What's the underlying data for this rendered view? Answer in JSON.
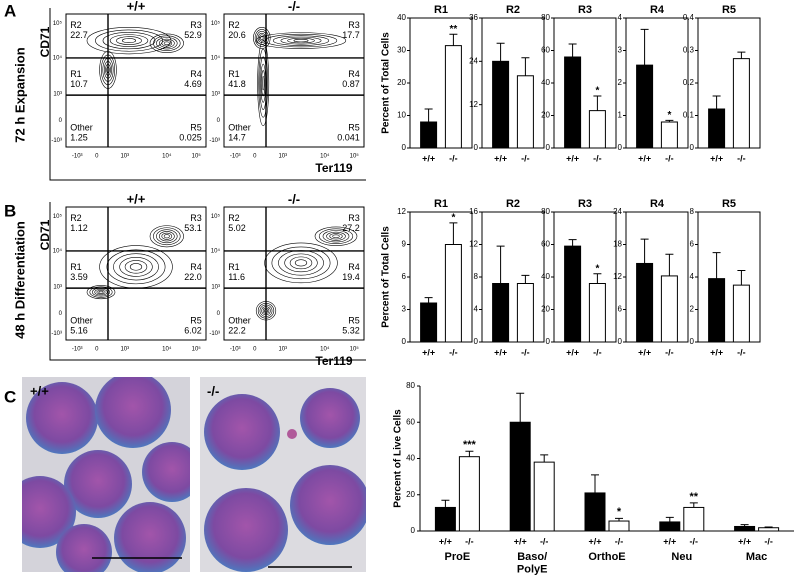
{
  "panel_labels": [
    "A",
    "B",
    "C"
  ],
  "row_labels": [
    "72 h Expansion",
    "48 h Differentiation"
  ],
  "micrograph_labels": [
    "+/+",
    "-/-"
  ],
  "chart_data": [
    {
      "type": "flow",
      "title": "+/+",
      "ylabel": "CD71",
      "quadrants": [
        {
          "name": "R2",
          "value": 22.7
        },
        {
          "name": "R3",
          "value": 52.9
        },
        {
          "name": "R1",
          "value": 10.7
        },
        {
          "name": "R4",
          "value": 4.69
        },
        {
          "name": "Other",
          "value": 1.25
        },
        {
          "name": "R5",
          "value": 0.025
        }
      ],
      "xtick_labels": [
        "-10³",
        "0",
        "10³",
        "10⁴",
        "10⁵"
      ],
      "ytick_labels": [
        "10⁵",
        "10⁴",
        "10³",
        "0",
        "-10³"
      ]
    },
    {
      "type": "flow",
      "title": "-/-",
      "xlabel": "Ter119",
      "quadrants": [
        {
          "name": "R2",
          "value": 20.6
        },
        {
          "name": "R3",
          "value": 17.7
        },
        {
          "name": "R1",
          "value": 41.8
        },
        {
          "name": "R4",
          "value": 0.87
        },
        {
          "name": "Other",
          "value": 14.7
        },
        {
          "name": "R5",
          "value": 0.041
        }
      ],
      "xtick_labels": [
        "-10³",
        "0",
        "10³",
        "10⁴",
        "10⁵"
      ],
      "ytick_labels": [
        "10⁵",
        "10⁴",
        "10³",
        "0",
        "-10³"
      ]
    },
    {
      "type": "flow",
      "title": "+/+",
      "ylabel": "CD71",
      "quadrants": [
        {
          "name": "R2",
          "value": 1.12
        },
        {
          "name": "R3",
          "value": 53.1
        },
        {
          "name": "R1",
          "value": 3.59
        },
        {
          "name": "R4",
          "value": {
            "value": 22,
            "label": "22.0"
          }
        },
        {
          "name": "Other",
          "value": 5.16
        },
        {
          "name": "R5",
          "value": 6.02
        }
      ],
      "xtick_labels": [
        "-10³",
        "0",
        "10³",
        "10⁴",
        "10⁵"
      ],
      "ytick_labels": [
        "10⁵",
        "10⁴",
        "10³",
        "0",
        "-10³"
      ]
    },
    {
      "type": "flow",
      "title": "-/-",
      "xlabel": "Ter119",
      "quadrants": [
        {
          "name": "R2",
          "value": 5.02
        },
        {
          "name": "R3",
          "value": 27.2
        },
        {
          "name": "R1",
          "value": 11.6
        },
        {
          "name": "R4",
          "value": 19.4
        },
        {
          "name": "Other",
          "value": 22.2
        },
        {
          "name": "R5",
          "value": 5.32
        }
      ],
      "xtick_labels": [
        "-10³",
        "0",
        "10³",
        "10⁴",
        "10⁵"
      ],
      "ytick_labels": [
        "10⁵",
        "10⁴",
        "10³",
        "0",
        "-10³"
      ]
    },
    {
      "type": "bar",
      "title": "R1",
      "ylabel": "Percent of Total Cells",
      "categories": [
        "+/+",
        "-/-"
      ],
      "colors": [
        "#000000",
        "#ffffff"
      ],
      "values": [
        8,
        31.5
      ],
      "errors": [
        4,
        3.5
      ],
      "annotations": [
        null,
        "**"
      ],
      "ylim": [
        0,
        40
      ],
      "yticks": [
        0,
        10,
        20,
        30,
        40
      ]
    },
    {
      "type": "bar",
      "title": "R2",
      "categories": [
        "+/+",
        "-/-"
      ],
      "colors": [
        "#000000",
        "#ffffff"
      ],
      "values": [
        24,
        20
      ],
      "errors": [
        5,
        5
      ],
      "annotations": [
        null,
        null
      ],
      "ylim": [
        0,
        36
      ],
      "yticks": [
        0,
        12,
        24,
        36
      ]
    },
    {
      "type": "bar",
      "title": "R3",
      "categories": [
        "+/+",
        "-/-"
      ],
      "colors": [
        "#000000",
        "#ffffff"
      ],
      "values": [
        56,
        23
      ],
      "errors": [
        8,
        9
      ],
      "annotations": [
        null,
        "*"
      ],
      "ylim": [
        0,
        80
      ],
      "yticks": [
        0,
        20,
        40,
        60,
        80
      ]
    },
    {
      "type": "bar",
      "title": "R4",
      "categories": [
        "+/+",
        "-/-"
      ],
      "colors": [
        "#000000",
        "#ffffff"
      ],
      "values": [
        2.55,
        0.8
      ],
      "errors": [
        1.1,
        0.05
      ],
      "annotations": [
        null,
        "*"
      ],
      "ylim": [
        0,
        4
      ],
      "yticks": [
        0,
        1,
        2,
        3,
        4
      ]
    },
    {
      "type": "bar",
      "title": "R5",
      "categories": [
        "+/+",
        "-/-"
      ],
      "colors": [
        "#000000",
        "#ffffff"
      ],
      "values": [
        0.12,
        0.275
      ],
      "errors": [
        0.04,
        0.02
      ],
      "annotations": [
        null,
        null
      ],
      "ylim": [
        0,
        0.4
      ],
      "yticks": [
        0,
        0.1,
        0.2,
        0.3,
        0.4
      ]
    },
    {
      "type": "bar",
      "title": "R1",
      "ylabel": "Percent of Total Cells",
      "categories": [
        "+/+",
        "-/-"
      ],
      "colors": [
        "#000000",
        "#ffffff"
      ],
      "values": [
        3.6,
        9
      ],
      "errors": [
        0.5,
        2
      ],
      "annotations": [
        null,
        "*"
      ],
      "ylim": [
        0,
        12
      ],
      "yticks": [
        0,
        3,
        6,
        9,
        12
      ]
    },
    {
      "type": "bar",
      "title": "R2",
      "categories": [
        "+/+",
        "-/-"
      ],
      "colors": [
        "#000000",
        "#ffffff"
      ],
      "values": [
        7.2,
        7.2
      ],
      "errors": [
        4.6,
        1
      ],
      "annotations": [
        null,
        null
      ],
      "ylim": [
        0,
        16
      ],
      "yticks": [
        0,
        4,
        8,
        12,
        16
      ]
    },
    {
      "type": "bar",
      "title": "R3",
      "categories": [
        "+/+",
        "-/-"
      ],
      "colors": [
        "#000000",
        "#ffffff"
      ],
      "values": [
        59,
        36
      ],
      "errors": [
        4,
        6
      ],
      "annotations": [
        null,
        "*"
      ],
      "ylim": [
        0,
        80
      ],
      "yticks": [
        0,
        20,
        40,
        60,
        80
      ]
    },
    {
      "type": "bar",
      "title": "R4",
      "categories": [
        "+/+",
        "-/-"
      ],
      "colors": [
        "#000000",
        "#ffffff"
      ],
      "values": [
        14.5,
        12.2
      ],
      "errors": [
        4.5,
        4
      ],
      "annotations": [
        null,
        null
      ],
      "ylim": [
        0,
        24
      ],
      "yticks": [
        0,
        6,
        12,
        18,
        24
      ]
    },
    {
      "type": "bar",
      "title": "R5",
      "categories": [
        "+/+",
        "-/-"
      ],
      "colors": [
        "#000000",
        "#ffffff"
      ],
      "values": [
        3.9,
        3.5
      ],
      "errors": [
        1.6,
        0.9
      ],
      "annotations": [
        null,
        null
      ],
      "ylim": [
        0,
        8
      ],
      "yticks": [
        0,
        2,
        4,
        6,
        8
      ]
    },
    {
      "type": "grouped_bar",
      "ylabel": "Percent of Live Cells",
      "categories": [
        "ProE",
        "Baso/\nPolyE",
        "OrthoE",
        "Neu",
        "Mac"
      ],
      "series": [
        {
          "name": "+/+",
          "color": "#000000",
          "values": [
            13,
            60,
            21,
            5,
            2.5
          ],
          "errors": [
            4,
            16,
            10,
            2.5,
            1
          ],
          "annotations": [
            null,
            null,
            null,
            null,
            null
          ]
        },
        {
          "name": "-/-",
          "color": "#ffffff",
          "values": [
            41,
            38,
            5.5,
            13,
            1.8
          ],
          "errors": [
            3,
            4,
            1.5,
            2.5,
            0.4
          ],
          "annotations": [
            "***",
            null,
            "*",
            "**",
            null
          ]
        }
      ],
      "ylim": [
        0,
        80
      ],
      "yticks": [
        0,
        20,
        40,
        60,
        80
      ]
    }
  ]
}
